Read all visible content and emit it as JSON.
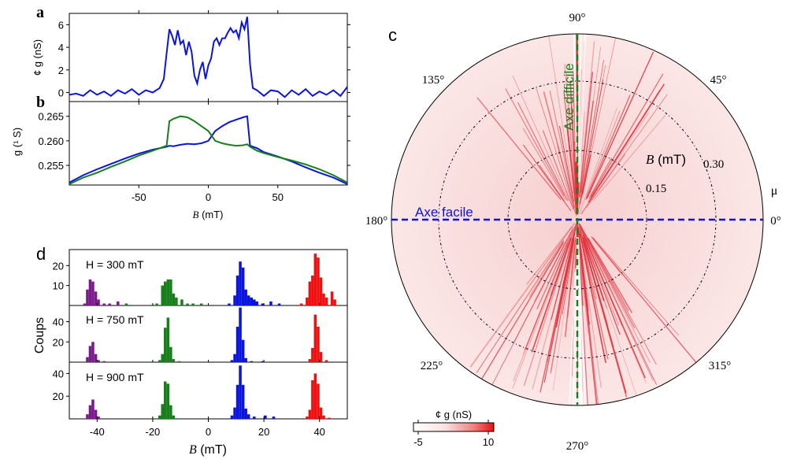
{
  "panels": {
    "a": "a",
    "b": "b",
    "c": "c",
    "d": "d"
  },
  "colors": {
    "blue": "#0a14dc",
    "green": "#17801a",
    "purple": "#7a1a8c",
    "red": "#f01010",
    "polar_bg": "#fbe4e4",
    "polar_line": "#e0303a"
  },
  "chart_data": [
    {
      "id": "a",
      "type": "line",
      "ylabel": "¢ g (nS)",
      "xlim": [
        -100,
        100
      ],
      "ylim": [
        -0.8,
        7
      ],
      "yticks": [
        0,
        2,
        4,
        6
      ],
      "series": [
        {
          "color": "blue",
          "x": [
            -100,
            -95,
            -90,
            -85,
            -80,
            -75,
            -70,
            -65,
            -60,
            -55,
            -50,
            -45,
            -40,
            -35,
            -32,
            -30,
            -28,
            -26,
            -24,
            -22,
            -20,
            -18,
            -16,
            -14,
            -12,
            -10,
            -8,
            -6,
            -4,
            -2,
            0,
            2,
            4,
            6,
            8,
            10,
            12,
            14,
            16,
            18,
            20,
            22,
            24,
            26,
            28,
            30,
            32,
            35,
            40,
            45,
            50,
            55,
            60,
            65,
            70,
            75,
            80,
            85,
            90,
            95,
            100
          ],
          "y": [
            -0.2,
            -0.1,
            -0.3,
            0.2,
            -0.2,
            0.1,
            -0.3,
            0.2,
            -0.1,
            0.3,
            -0.2,
            0.2,
            0.0,
            0.4,
            1.2,
            3.5,
            5.6,
            5.0,
            4.2,
            5.5,
            4.3,
            4.6,
            3.3,
            4.5,
            3.6,
            1.5,
            0.8,
            2.0,
            2.7,
            1.2,
            2.4,
            3.0,
            4.5,
            4.8,
            4.2,
            4.8,
            4.8,
            5.3,
            5.7,
            5.3,
            5.5,
            4.8,
            6.2,
            5.6,
            6.7,
            2.5,
            0.4,
            0.2,
            -0.3,
            0.2,
            0.1,
            -0.4,
            0.2,
            -0.2,
            0.3,
            -0.3,
            0.1,
            -0.2,
            0.2,
            -0.3,
            0.5
          ]
        }
      ]
    },
    {
      "id": "b",
      "type": "line",
      "ylabel": "g (¹ S)",
      "xlabel": "B (mT)",
      "xlim": [
        -100,
        100
      ],
      "ylim": [
        0.251,
        0.268
      ],
      "xticks": [
        -50,
        0,
        50
      ],
      "yticks": [
        0.255,
        0.26,
        0.265
      ],
      "ytick_labels": [
        "0.255",
        "0.260",
        "0.265"
      ],
      "series": [
        {
          "color": "blue",
          "x": [
            -100,
            -90,
            -80,
            -70,
            -60,
            -50,
            -40,
            -30,
            -28,
            -25,
            -20,
            -15,
            -10,
            -5,
            0,
            5,
            10,
            15,
            20,
            25,
            28,
            30,
            35,
            40,
            50,
            60,
            70,
            80,
            90,
            100
          ],
          "y": [
            0.2515,
            0.253,
            0.2542,
            0.2553,
            0.2564,
            0.2574,
            0.2582,
            0.2588,
            0.259,
            0.2589,
            0.2592,
            0.2594,
            0.2593,
            0.2595,
            0.26,
            0.262,
            0.263,
            0.2638,
            0.2643,
            0.2648,
            0.265,
            0.259,
            0.2585,
            0.2577,
            0.2568,
            0.2558,
            0.2546,
            0.2535,
            0.2525,
            0.2512
          ]
        },
        {
          "color": "green",
          "x": [
            -100,
            -90,
            -80,
            -70,
            -60,
            -50,
            -40,
            -30,
            -28,
            -25,
            -20,
            -15,
            -10,
            -5,
            0,
            5,
            10,
            15,
            20,
            25,
            28,
            30,
            35,
            40,
            50,
            60,
            70,
            80,
            90,
            100
          ],
          "y": [
            0.2512,
            0.2525,
            0.2535,
            0.2547,
            0.2558,
            0.257,
            0.258,
            0.259,
            0.264,
            0.2645,
            0.265,
            0.2648,
            0.264,
            0.263,
            0.262,
            0.26,
            0.2595,
            0.2592,
            0.259,
            0.2591,
            0.2593,
            0.2588,
            0.258,
            0.2575,
            0.2567,
            0.256,
            0.2552,
            0.2542,
            0.253,
            0.2515
          ]
        }
      ]
    },
    {
      "id": "c",
      "type": "polar",
      "angle_labels": [
        "0°",
        "45°",
        "90°",
        "135°",
        "180°",
        "225°",
        "270°",
        "315°"
      ],
      "angle_deg": [
        0,
        45,
        90,
        135,
        180,
        225,
        270,
        315
      ],
      "r_ticks": [
        0.15,
        0.3
      ],
      "r_tick_labels": [
        "0.15",
        "0.30"
      ],
      "r_max": 0.4,
      "r_label": "B (mT)",
      "angle_symbol": "μ",
      "easy_axis_label": "Axe facile",
      "easy_axis_angle": 0,
      "hard_axis_label": "Axe difficile",
      "hard_axis_angle": 90,
      "colorbar": {
        "label": "¢ g (nS)",
        "min": -5,
        "max": 10,
        "tick_labels": [
          "-5",
          "10"
        ]
      }
    },
    {
      "id": "d",
      "type": "bar",
      "xlabel": "B (mT)",
      "ylabel": "Coups",
      "xlim": [
        -50,
        50
      ],
      "xticks": [
        -40,
        -20,
        0,
        20,
        40
      ],
      "bin_width": 1,
      "group_colors": [
        "purple",
        "green",
        "blue",
        "red"
      ],
      "subplots": [
        {
          "label": "H = 300 mT",
          "ylim": [
            0,
            28
          ],
          "yticks": [
            10,
            20
          ],
          "bins": [
            [
              -45,
              1
            ],
            [
              -44,
              8
            ],
            [
              -43,
              13
            ],
            [
              -42,
              12
            ],
            [
              -41,
              7
            ],
            [
              -40,
              3
            ],
            [
              -38,
              1
            ],
            [
              -36,
              1
            ],
            [
              -33,
              2
            ],
            [
              -30,
              1
            ],
            [
              -19,
              1
            ],
            [
              -17,
              10
            ],
            [
              -16,
              12
            ],
            [
              -15,
              13
            ],
            [
              -14,
              13
            ],
            [
              -13,
              6
            ],
            [
              -12,
              4
            ],
            [
              -10,
              3
            ],
            [
              -8,
              1
            ],
            [
              -6,
              1
            ],
            [
              -3,
              1
            ],
            [
              7,
              1
            ],
            [
              9,
              5
            ],
            [
              10,
              15
            ],
            [
              11,
              22
            ],
            [
              12,
              19
            ],
            [
              13,
              8
            ],
            [
              14,
              5
            ],
            [
              15,
              4
            ],
            [
              16,
              3
            ],
            [
              17,
              2
            ],
            [
              19,
              1
            ],
            [
              22,
              2
            ],
            [
              25,
              1
            ],
            [
              33,
              1
            ],
            [
              35,
              4
            ],
            [
              36,
              12
            ],
            [
              37,
              15
            ],
            [
              38,
              26
            ],
            [
              39,
              24
            ],
            [
              40,
              14
            ],
            [
              41,
              6
            ],
            [
              42,
              4
            ],
            [
              44,
              7
            ],
            [
              45,
              3
            ]
          ]
        },
        {
          "label": "H = 750 mT",
          "ylim": [
            0,
            56
          ],
          "yticks": [
            20,
            40
          ],
          "bins": [
            [
              -44,
              5
            ],
            [
              -43,
              16
            ],
            [
              -42,
              20
            ],
            [
              -41,
              8
            ],
            [
              -40,
              2
            ],
            [
              -38,
              1
            ],
            [
              -18,
              2
            ],
            [
              -17,
              8
            ],
            [
              -16,
              34
            ],
            [
              -15,
              44
            ],
            [
              -14,
              15
            ],
            [
              -13,
              3
            ],
            [
              -11,
              1
            ],
            [
              8,
              2
            ],
            [
              9,
              8
            ],
            [
              10,
              35
            ],
            [
              11,
              54
            ],
            [
              12,
              22
            ],
            [
              13,
              4
            ],
            [
              15,
              1
            ],
            [
              19,
              1
            ],
            [
              36,
              3
            ],
            [
              37,
              14
            ],
            [
              38,
              47
            ],
            [
              39,
              35
            ],
            [
              40,
              10
            ],
            [
              42,
              2
            ]
          ]
        },
        {
          "label": "H = 900 mT",
          "ylim": [
            0,
            50
          ],
          "yticks": [
            20,
            40
          ],
          "bins": [
            [
              -44,
              4
            ],
            [
              -43,
              12
            ],
            [
              -42,
              17
            ],
            [
              -41,
              8
            ],
            [
              -40,
              2
            ],
            [
              -18,
              3
            ],
            [
              -17,
              13
            ],
            [
              -16,
              33
            ],
            [
              -15,
              31
            ],
            [
              -14,
              12
            ],
            [
              -13,
              3
            ],
            [
              8,
              3
            ],
            [
              9,
              10
            ],
            [
              10,
              30
            ],
            [
              11,
              47
            ],
            [
              12,
              30
            ],
            [
              13,
              9
            ],
            [
              14,
              4
            ],
            [
              16,
              2
            ],
            [
              20,
              3
            ],
            [
              23,
              2
            ],
            [
              35,
              2
            ],
            [
              36,
              8
            ],
            [
              37,
              34
            ],
            [
              38,
              40
            ],
            [
              39,
              31
            ],
            [
              40,
              10
            ],
            [
              41,
              3
            ],
            [
              43,
              1
            ]
          ]
        }
      ]
    }
  ]
}
